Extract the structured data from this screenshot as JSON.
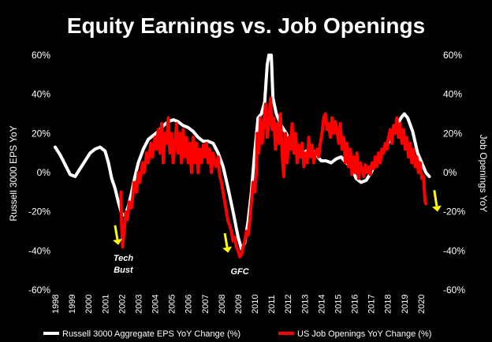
{
  "chart_data": {
    "type": "line",
    "title": "Equity Earnings vs. Job Openings",
    "ylabel": "Russell 3000 EPS YoY",
    "ylabel_right": "Job Openings YoY",
    "ylim": [
      -60,
      60
    ],
    "yticks": [
      "60%",
      "40%",
      "20%",
      "0%",
      "-20%",
      "-40%",
      "-60%"
    ],
    "yticks_right": [
      "60%",
      "40%",
      "20%",
      "0%",
      "-20%",
      "-40%",
      "-60%"
    ],
    "xlim": [
      1998,
      2021
    ],
    "xticks": [
      "1998",
      "1999",
      "2000",
      "2001",
      "2002",
      "2003",
      "2004",
      "2005",
      "2006",
      "2007",
      "2008",
      "2009",
      "2010",
      "2011",
      "2012",
      "2013",
      "2014",
      "2015",
      "2016",
      "2017",
      "2018",
      "2019",
      "2020"
    ],
    "grid": false,
    "legend_position": "bottom",
    "series": [
      {
        "name": "Russell 3000 Aggregate EPS YoY Change (%)",
        "color": "#ffffff",
        "points": [
          [
            1998.0,
            13
          ],
          [
            1998.3,
            9
          ],
          [
            1998.6,
            4
          ],
          [
            1998.9,
            -1
          ],
          [
            1999.2,
            -2
          ],
          [
            1999.5,
            2
          ],
          [
            1999.8,
            6
          ],
          [
            2000.1,
            10
          ],
          [
            2000.4,
            12
          ],
          [
            2000.7,
            13
          ],
          [
            2001.0,
            11
          ],
          [
            2001.2,
            5
          ],
          [
            2001.4,
            -3
          ],
          [
            2001.6,
            -8
          ],
          [
            2001.8,
            -15
          ],
          [
            2002.0,
            -21
          ],
          [
            2002.2,
            -22
          ],
          [
            2002.4,
            -17
          ],
          [
            2002.6,
            -10
          ],
          [
            2002.8,
            -2
          ],
          [
            2003.0,
            5
          ],
          [
            2003.3,
            12
          ],
          [
            2003.6,
            17
          ],
          [
            2003.9,
            19
          ],
          [
            2004.2,
            21
          ],
          [
            2004.5,
            24
          ],
          [
            2004.8,
            26
          ],
          [
            2005.1,
            27
          ],
          [
            2005.4,
            26
          ],
          [
            2005.7,
            24
          ],
          [
            2006.0,
            23
          ],
          [
            2006.3,
            21
          ],
          [
            2006.6,
            18
          ],
          [
            2006.9,
            16
          ],
          [
            2007.2,
            16
          ],
          [
            2007.5,
            15
          ],
          [
            2007.8,
            10
          ],
          [
            2008.1,
            3
          ],
          [
            2008.4,
            -8
          ],
          [
            2008.7,
            -20
          ],
          [
            2009.0,
            -33
          ],
          [
            2009.2,
            -39
          ],
          [
            2009.4,
            -36
          ],
          [
            2009.6,
            -25
          ],
          [
            2009.8,
            -10
          ],
          [
            2010.0,
            10
          ],
          [
            2010.2,
            28
          ],
          [
            2010.4,
            30
          ],
          [
            2010.6,
            36
          ],
          [
            2010.75,
            55
          ],
          [
            2010.85,
            60
          ],
          [
            2011.0,
            60
          ],
          [
            2011.1,
            38
          ],
          [
            2011.3,
            30
          ],
          [
            2011.6,
            24
          ],
          [
            2011.9,
            20
          ],
          [
            2012.2,
            14
          ],
          [
            2012.5,
            10
          ],
          [
            2012.8,
            9
          ],
          [
            2013.1,
            11
          ],
          [
            2013.4,
            12
          ],
          [
            2013.7,
            9
          ],
          [
            2014.0,
            6
          ],
          [
            2014.3,
            6
          ],
          [
            2014.6,
            5
          ],
          [
            2014.9,
            7
          ],
          [
            2015.2,
            8
          ],
          [
            2015.5,
            5
          ],
          [
            2015.8,
            3
          ],
          [
            2016.1,
            -3
          ],
          [
            2016.4,
            -5
          ],
          [
            2016.7,
            -4
          ],
          [
            2017.0,
            0
          ],
          [
            2017.3,
            5
          ],
          [
            2017.6,
            9
          ],
          [
            2017.9,
            13
          ],
          [
            2018.2,
            18
          ],
          [
            2018.5,
            23
          ],
          [
            2018.8,
            28
          ],
          [
            2019.0,
            30
          ],
          [
            2019.2,
            28
          ],
          [
            2019.5,
            21
          ],
          [
            2019.8,
            10
          ],
          [
            2020.1,
            4
          ],
          [
            2020.3,
            0
          ],
          [
            2020.5,
            -2
          ]
        ]
      },
      {
        "name": "US Job Openings YoY Change (%)",
        "color": "#ff0000",
        "points": [
          [
            2001.95,
            -10
          ],
          [
            2002.0,
            -27
          ],
          [
            2002.05,
            -38
          ],
          [
            2002.15,
            -30
          ],
          [
            2002.25,
            -20
          ],
          [
            2002.35,
            -24
          ],
          [
            2002.45,
            -15
          ],
          [
            2002.6,
            -18
          ],
          [
            2002.75,
            -5
          ],
          [
            2002.9,
            -10
          ],
          [
            2003.0,
            0
          ],
          [
            2003.1,
            -5
          ],
          [
            2003.25,
            5
          ],
          [
            2003.35,
            0
          ],
          [
            2003.5,
            10
          ],
          [
            2003.6,
            5
          ],
          [
            2003.75,
            15
          ],
          [
            2003.85,
            8
          ],
          [
            2004.0,
            18
          ],
          [
            2004.1,
            12
          ],
          [
            2004.2,
            22
          ],
          [
            2004.3,
            10
          ],
          [
            2004.4,
            25
          ],
          [
            2004.5,
            5
          ],
          [
            2004.6,
            20
          ],
          [
            2004.7,
            15
          ],
          [
            2004.8,
            28
          ],
          [
            2004.9,
            10
          ],
          [
            2005.0,
            20
          ],
          [
            2005.1,
            5
          ],
          [
            2005.2,
            15
          ],
          [
            2005.3,
            25
          ],
          [
            2005.4,
            10
          ],
          [
            2005.5,
            20
          ],
          [
            2005.6,
            5
          ],
          [
            2005.7,
            22
          ],
          [
            2005.8,
            8
          ],
          [
            2005.9,
            18
          ],
          [
            2006.0,
            5
          ],
          [
            2006.1,
            15
          ],
          [
            2006.2,
            0
          ],
          [
            2006.3,
            18
          ],
          [
            2006.4,
            5
          ],
          [
            2006.5,
            15
          ],
          [
            2006.6,
            0
          ],
          [
            2006.7,
            12
          ],
          [
            2006.8,
            5
          ],
          [
            2006.9,
            14
          ],
          [
            2007.0,
            8
          ],
          [
            2007.1,
            15
          ],
          [
            2007.2,
            5
          ],
          [
            2007.3,
            12
          ],
          [
            2007.4,
            0
          ],
          [
            2007.5,
            10
          ],
          [
            2007.6,
            5
          ],
          [
            2007.7,
            3
          ],
          [
            2007.8,
            8
          ],
          [
            2007.9,
            -2
          ],
          [
            2008.0,
            -5
          ],
          [
            2008.1,
            -10
          ],
          [
            2008.2,
            -15
          ],
          [
            2008.3,
            -20
          ],
          [
            2008.4,
            -25
          ],
          [
            2008.5,
            -27
          ],
          [
            2008.6,
            -30
          ],
          [
            2008.7,
            -35
          ],
          [
            2008.8,
            -33
          ],
          [
            2008.9,
            -38
          ],
          [
            2009.0,
            -40
          ],
          [
            2009.1,
            -43
          ],
          [
            2009.2,
            -42
          ],
          [
            2009.3,
            -38
          ],
          [
            2009.4,
            -35
          ],
          [
            2009.5,
            -30
          ],
          [
            2009.6,
            -32
          ],
          [
            2009.7,
            -25
          ],
          [
            2009.8,
            -15
          ],
          [
            2009.9,
            -5
          ],
          [
            2010.0,
            -10
          ],
          [
            2010.1,
            0
          ],
          [
            2010.15,
            20
          ],
          [
            2010.25,
            10
          ],
          [
            2010.35,
            28
          ],
          [
            2010.45,
            15
          ],
          [
            2010.55,
            25
          ],
          [
            2010.65,
            35
          ],
          [
            2010.75,
            18
          ],
          [
            2010.85,
            25
          ],
          [
            2010.95,
            38
          ],
          [
            2011.05,
            22
          ],
          [
            2011.15,
            28
          ],
          [
            2011.25,
            12
          ],
          [
            2011.35,
            25
          ],
          [
            2011.45,
            15
          ],
          [
            2011.55,
            30
          ],
          [
            2011.65,
            10
          ],
          [
            2011.75,
            -2
          ],
          [
            2011.85,
            20
          ],
          [
            2011.95,
            5
          ],
          [
            2012.05,
            18
          ],
          [
            2012.15,
            12
          ],
          [
            2012.25,
            25
          ],
          [
            2012.35,
            10
          ],
          [
            2012.45,
            20
          ],
          [
            2012.55,
            5
          ],
          [
            2012.65,
            14
          ],
          [
            2012.75,
            8
          ],
          [
            2012.85,
            15
          ],
          [
            2012.95,
            3
          ],
          [
            2013.05,
            10
          ],
          [
            2013.15,
            5
          ],
          [
            2013.25,
            18
          ],
          [
            2013.35,
            8
          ],
          [
            2013.45,
            14
          ],
          [
            2013.55,
            5
          ],
          [
            2013.65,
            10
          ],
          [
            2013.75,
            12
          ],
          [
            2013.85,
            8
          ],
          [
            2013.95,
            15
          ],
          [
            2014.05,
            20
          ],
          [
            2014.15,
            28
          ],
          [
            2014.25,
            30
          ],
          [
            2014.35,
            22
          ],
          [
            2014.45,
            25
          ],
          [
            2014.55,
            18
          ],
          [
            2014.65,
            28
          ],
          [
            2014.75,
            20
          ],
          [
            2014.85,
            26
          ],
          [
            2014.95,
            22
          ],
          [
            2015.05,
            15
          ],
          [
            2015.15,
            25
          ],
          [
            2015.25,
            12
          ],
          [
            2015.35,
            18
          ],
          [
            2015.45,
            5
          ],
          [
            2015.55,
            15
          ],
          [
            2015.65,
            3
          ],
          [
            2015.75,
            12
          ],
          [
            2015.85,
            -1
          ],
          [
            2015.95,
            8
          ],
          [
            2016.05,
            0
          ],
          [
            2016.15,
            10
          ],
          [
            2016.25,
            -3
          ],
          [
            2016.35,
            5
          ],
          [
            2016.45,
            2
          ],
          [
            2016.55,
            -2
          ],
          [
            2016.65,
            4
          ],
          [
            2016.75,
            0
          ],
          [
            2016.85,
            3
          ],
          [
            2016.95,
            -1
          ],
          [
            2017.05,
            5
          ],
          [
            2017.15,
            2
          ],
          [
            2017.25,
            8
          ],
          [
            2017.35,
            3
          ],
          [
            2017.45,
            10
          ],
          [
            2017.55,
            5
          ],
          [
            2017.65,
            12
          ],
          [
            2017.75,
            10
          ],
          [
            2017.85,
            15
          ],
          [
            2017.95,
            12
          ],
          [
            2018.05,
            18
          ],
          [
            2018.15,
            22
          ],
          [
            2018.25,
            15
          ],
          [
            2018.35,
            24
          ],
          [
            2018.45,
            20
          ],
          [
            2018.55,
            28
          ],
          [
            2018.65,
            18
          ],
          [
            2018.75,
            25
          ],
          [
            2018.85,
            15
          ],
          [
            2018.95,
            22
          ],
          [
            2019.05,
            12
          ],
          [
            2019.15,
            18
          ],
          [
            2019.25,
            8
          ],
          [
            2019.35,
            15
          ],
          [
            2019.45,
            5
          ],
          [
            2019.55,
            12
          ],
          [
            2019.65,
            3
          ],
          [
            2019.75,
            8
          ],
          [
            2019.85,
            0
          ],
          [
            2019.95,
            5
          ],
          [
            2020.05,
            -3
          ],
          [
            2020.15,
            -2
          ],
          [
            2020.25,
            -15
          ],
          [
            2020.3,
            -16
          ]
        ]
      }
    ],
    "annotations": [
      {
        "lines": [
          "Tech",
          "Bust"
        ],
        "x": 2002.1,
        "y": -45
      },
      {
        "lines": [
          "GFC"
        ],
        "x": 2009.1,
        "y": -52
      }
    ],
    "arrows": [
      {
        "color": "#ffff00",
        "x_tail": 2001.6,
        "y_tail": -27,
        "x_head": 2001.8,
        "y_head": -37
      },
      {
        "color": "#ffff00",
        "x_tail": 2008.2,
        "y_tail": -31,
        "x_head": 2008.4,
        "y_head": -41
      },
      {
        "color": "#ffff00",
        "x_tail": 2020.8,
        "y_tail": -9,
        "x_head": 2021.0,
        "y_head": -20
      }
    ]
  }
}
